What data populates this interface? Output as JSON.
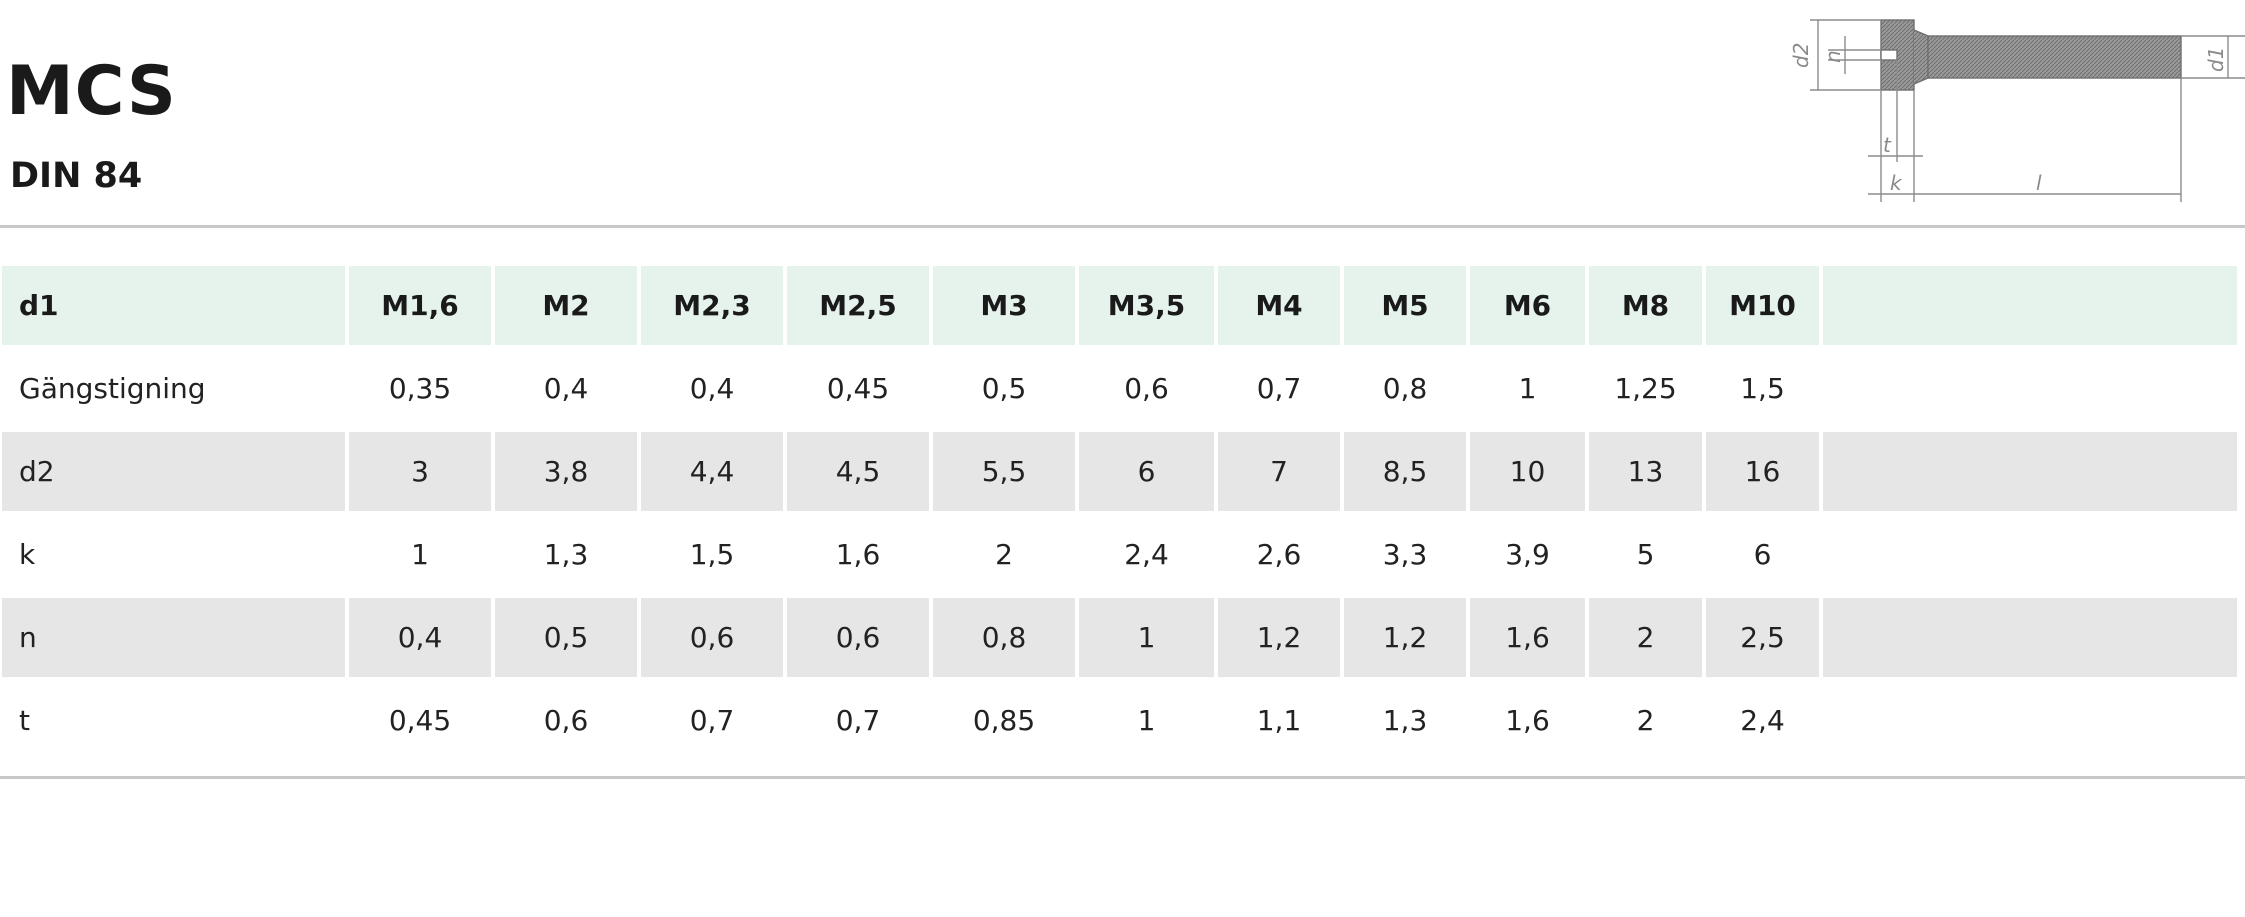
{
  "header": {
    "title": "MCS",
    "subtitle": "DIN 84"
  },
  "diagram": {
    "labels": {
      "d2": "d2",
      "n": "n",
      "d1": "d1",
      "t": "t",
      "k": "k",
      "l": "l"
    }
  },
  "table": {
    "header": {
      "label": "d1",
      "columns": [
        "M1,6",
        "M2",
        "M2,3",
        "M2,5",
        "M3",
        "M3,5",
        "M4",
        "M5",
        "M6",
        "M8",
        "M10"
      ]
    },
    "rows": [
      {
        "label": "Gängstigning",
        "values": [
          "0,35",
          "0,4",
          "0,4",
          "0,45",
          "0,5",
          "0,6",
          "0,7",
          "0,8",
          "1",
          "1,25",
          "1,5"
        ]
      },
      {
        "label": "d2",
        "values": [
          "3",
          "3,8",
          "4,4",
          "4,5",
          "5,5",
          "6",
          "7",
          "8,5",
          "10",
          "13",
          "16"
        ]
      },
      {
        "label": "k",
        "values": [
          "1",
          "1,3",
          "1,5",
          "1,6",
          "2",
          "2,4",
          "2,6",
          "3,3",
          "3,9",
          "5",
          "6"
        ]
      },
      {
        "label": "n",
        "values": [
          "0,4",
          "0,5",
          "0,6",
          "0,6",
          "0,8",
          "1",
          "1,2",
          "1,2",
          "1,6",
          "2",
          "2,5"
        ]
      },
      {
        "label": "t",
        "values": [
          "0,45",
          "0,6",
          "0,7",
          "0,7",
          "0,85",
          "1",
          "1,1",
          "1,3",
          "1,6",
          "2",
          "2,4"
        ]
      }
    ]
  }
}
